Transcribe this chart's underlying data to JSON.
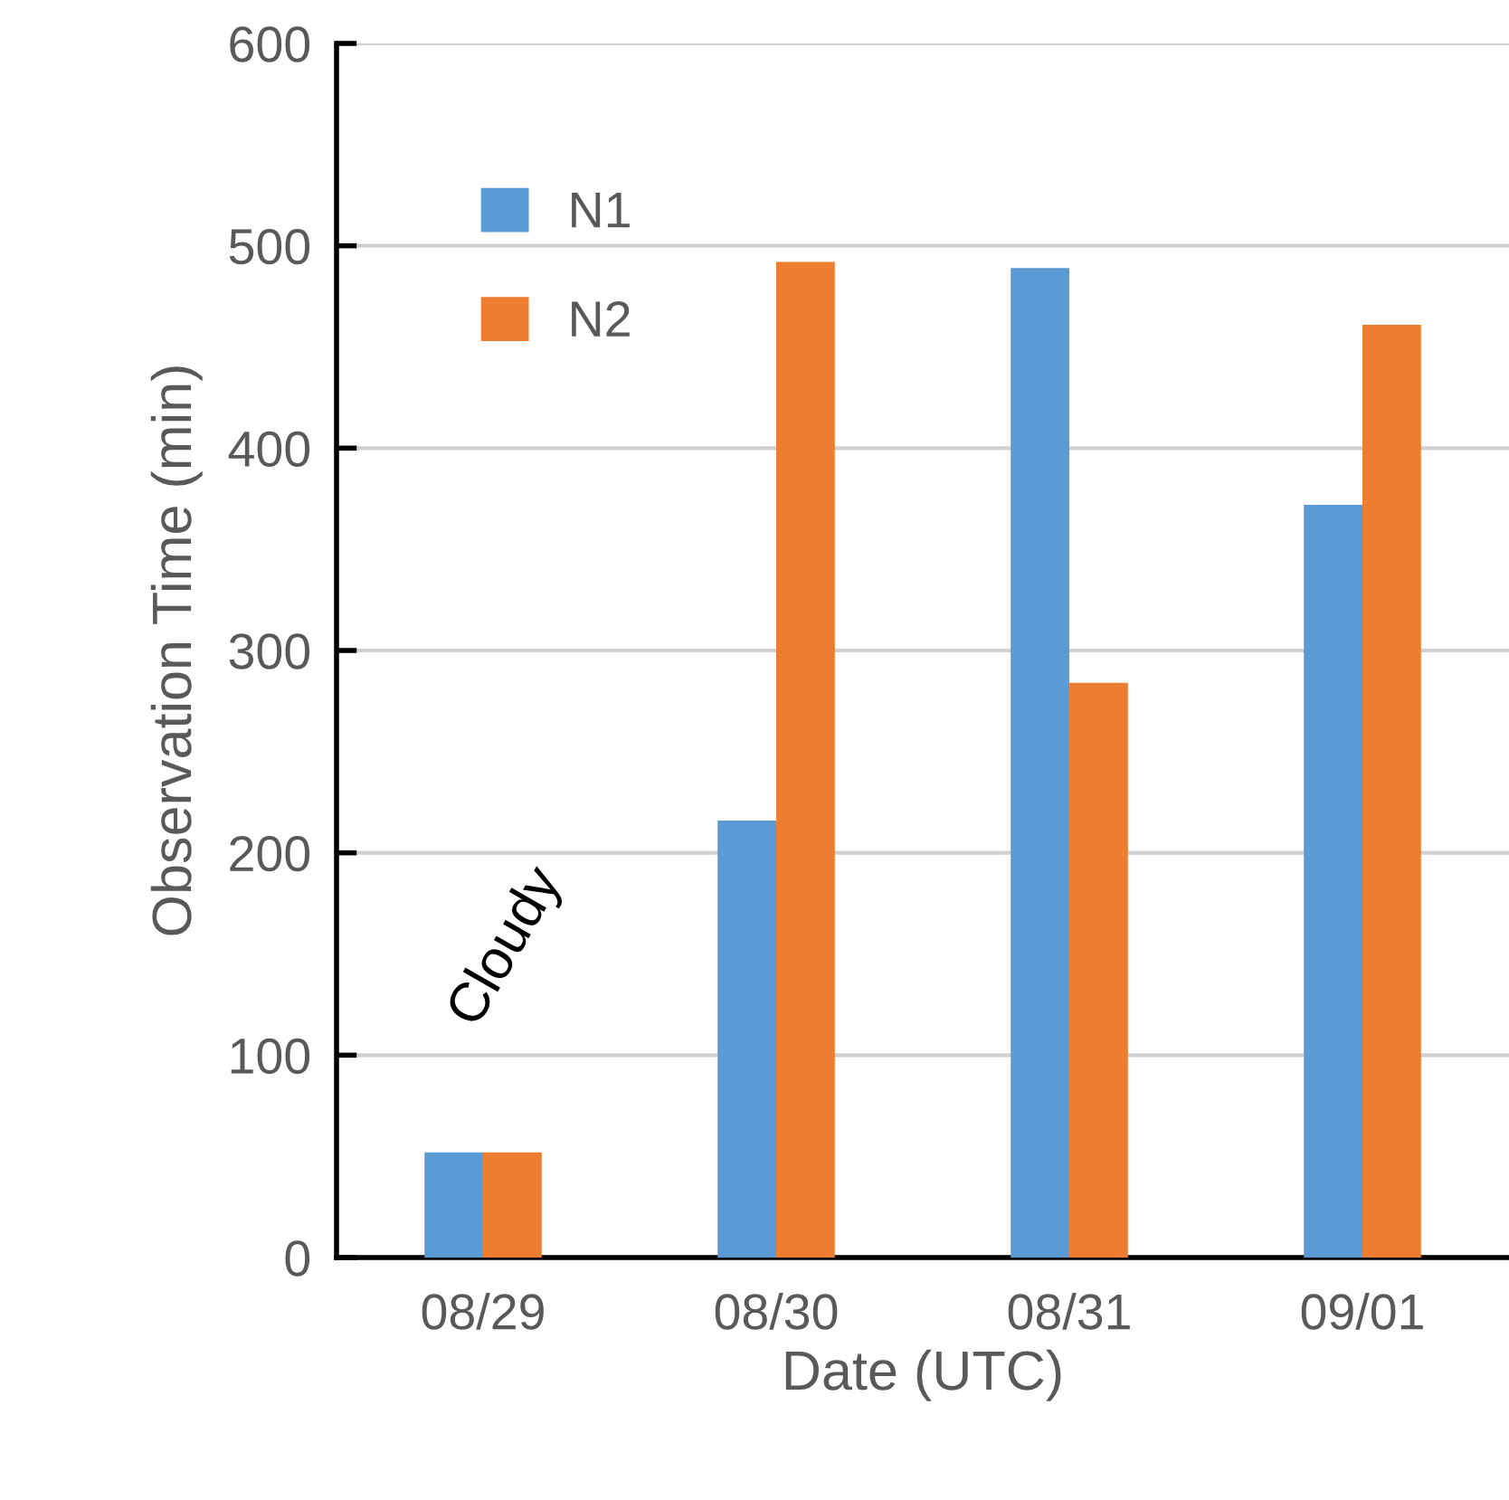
{
  "chart_data": {
    "type": "bar",
    "xlabel": "Date (UTC)",
    "ylabel": "Observation Time (min)",
    "categories": [
      "08/29",
      "08/30",
      "08/31",
      "09/01"
    ],
    "series": [
      {
        "name": "N1",
        "color": "#5b9bd5",
        "values": [
          52,
          216,
          489,
          372
        ]
      },
      {
        "name": "N2",
        "color": "#ed7d31",
        "values": [
          52,
          492,
          284,
          461
        ]
      }
    ],
    "ylim": [
      0,
      600
    ],
    "yticks": [
      0,
      100,
      200,
      300,
      400,
      500,
      600
    ],
    "grid": "y",
    "legend": "top left",
    "annotations": [
      "Cloudy"
    ]
  }
}
